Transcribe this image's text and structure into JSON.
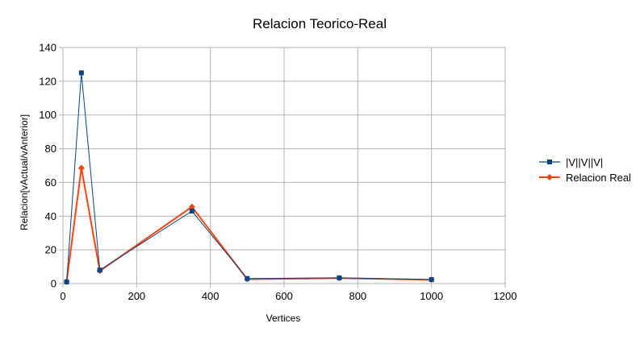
{
  "chart_data": {
    "type": "line",
    "title": "Relacion Teorico-Real",
    "xlabel": "Vertices",
    "ylabel": "Relacion[vActual/vAnterior]",
    "xlim": [
      0,
      1200
    ],
    "ylim": [
      0,
      140
    ],
    "x_ticks": [
      0,
      200,
      400,
      600,
      800,
      1000,
      1200
    ],
    "y_ticks": [
      0,
      20,
      40,
      60,
      80,
      100,
      120,
      140
    ],
    "grid": true,
    "legend_position": "right",
    "series": [
      {
        "name": "|V||V||V|",
        "color": "#004586",
        "marker": "square",
        "x": [
          10,
          50,
          100,
          350,
          500,
          750,
          1000
        ],
        "y": [
          1,
          125,
          8,
          43,
          3,
          3.4,
          2.4
        ]
      },
      {
        "name": "Relacion Real",
        "color": "#ff420e",
        "marker": "diamond",
        "x": [
          10,
          50,
          100,
          350,
          500,
          750,
          1000
        ],
        "y": [
          1,
          68.5,
          7.5,
          45.5,
          2.6,
          3.2,
          2.2
        ]
      }
    ]
  }
}
